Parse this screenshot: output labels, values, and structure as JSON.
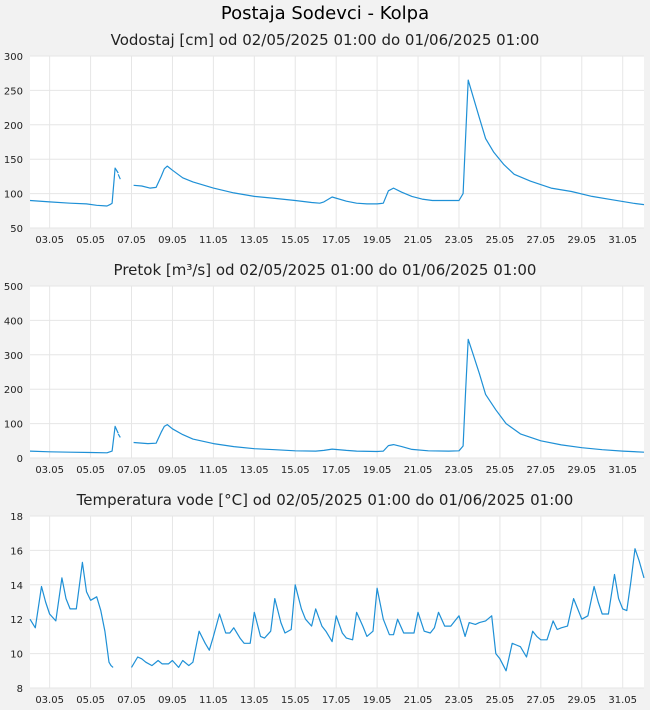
{
  "page_title": "Postaja Sodevci - Kolpa",
  "colors": {
    "line": "#1e90d6",
    "grid": "#e6e6e6",
    "plot_bg": "#ffffff",
    "page_bg": "#f2f2f2"
  },
  "chart_data": [
    {
      "type": "line",
      "title": "Vodostaj [cm] od 02/05/2025 01:00 do 01/06/2025 01:00",
      "xlabel": "",
      "ylabel": "",
      "x_unit": "day of May 2025",
      "xlim": [
        2.04,
        32.04
      ],
      "ylim": [
        50,
        300
      ],
      "yticks": [
        50,
        100,
        150,
        200,
        250,
        300
      ],
      "xtick_positions": [
        3,
        5,
        7,
        9,
        11,
        13,
        15,
        17,
        19,
        21,
        23,
        25,
        27,
        29,
        31
      ],
      "xtick_labels": [
        "03.05",
        "05.05",
        "07.05",
        "09.05",
        "11.05",
        "13.05",
        "15.05",
        "17.05",
        "19.05",
        "21.05",
        "23.05",
        "25.05",
        "27.05",
        "29.05",
        "31.05"
      ],
      "series": [
        {
          "name": "Vodostaj",
          "segments": [
            {
              "x": [
                2.04,
                3,
                4,
                4.8,
                5.3,
                5.8,
                5.95,
                6.05,
                6.2,
                6.35
              ],
              "y": [
                90,
                88,
                86,
                85,
                83,
                82,
                84,
                86,
                137,
                130
              ]
            },
            {
              "x": [
                6.35,
                6.45
              ],
              "y": [
                128,
                121
              ]
            },
            {
              "x": [
                7.1,
                7.5,
                7.9,
                8.2,
                8.45,
                8.6,
                8.75,
                9,
                9.5,
                10,
                11,
                12,
                13,
                14,
                15,
                15.8,
                16.2,
                16.4,
                16.8,
                17.5,
                18,
                18.5,
                19,
                19.3,
                19.55,
                19.8,
                20.2,
                20.7,
                21.2,
                21.7,
                22.2,
                22.6,
                23,
                23.2,
                23.33,
                23.45,
                23.7,
                24,
                24.3,
                24.7,
                25.2,
                25.7,
                26.5,
                27.5,
                28.5,
                29.5,
                30.5,
                31.5,
                32.04
              ],
              "y": [
                112,
                111,
                108,
                109,
                125,
                136,
                140,
                134,
                123,
                117,
                108,
                101,
                96,
                93,
                90,
                87,
                86,
                88,
                95,
                89,
                86,
                85,
                85,
                86,
                104,
                108,
                102,
                96,
                92,
                90,
                90,
                90,
                90,
                100,
                185,
                265,
                240,
                210,
                180,
                160,
                142,
                128,
                118,
                108,
                103,
                96,
                91,
                86,
                84
              ]
            }
          ]
        }
      ]
    },
    {
      "type": "line",
      "title": "Pretok [m³/s] od 02/05/2025 01:00 do 01/06/2025 01:00",
      "xlabel": "",
      "ylabel": "",
      "x_unit": "day of May 2025",
      "xlim": [
        2.04,
        32.04
      ],
      "ylim": [
        0,
        500
      ],
      "yticks": [
        0,
        100,
        200,
        300,
        400,
        500
      ],
      "xtick_positions": [
        3,
        5,
        7,
        9,
        11,
        13,
        15,
        17,
        19,
        21,
        23,
        25,
        27,
        29,
        31
      ],
      "xtick_labels": [
        "03.05",
        "05.05",
        "07.05",
        "09.05",
        "11.05",
        "13.05",
        "15.05",
        "17.05",
        "19.05",
        "21.05",
        "23.05",
        "25.05",
        "27.05",
        "29.05",
        "31.05"
      ],
      "series": [
        {
          "name": "Pretok",
          "segments": [
            {
              "x": [
                2.04,
                3,
                4,
                5,
                5.8,
                6.05,
                6.2,
                6.35
              ],
              "y": [
                20,
                18,
                17,
                16,
                15,
                20,
                92,
                72
              ]
            },
            {
              "x": [
                6.35,
                6.45
              ],
              "y": [
                70,
                60
              ]
            },
            {
              "x": [
                7.1,
                7.8,
                8.2,
                8.45,
                8.6,
                8.75,
                9,
                9.5,
                10,
                11,
                12,
                13,
                14,
                15,
                16,
                16.4,
                16.8,
                17.5,
                18,
                19,
                19.3,
                19.55,
                19.8,
                20.2,
                20.7,
                21.5,
                22.5,
                23,
                23.2,
                23.33,
                23.45,
                23.7,
                24,
                24.3,
                24.8,
                25.3,
                26,
                27,
                28,
                29,
                30,
                31,
                32.04
              ],
              "y": [
                45,
                42,
                43,
                75,
                92,
                97,
                85,
                68,
                55,
                42,
                33,
                27,
                24,
                21,
                20,
                22,
                26,
                22,
                20,
                19,
                20,
                36,
                39,
                33,
                25,
                21,
                20,
                21,
                35,
                200,
                345,
                300,
                245,
                185,
                140,
                100,
                70,
                50,
                38,
                30,
                24,
                20,
                17
              ]
            }
          ]
        }
      ]
    },
    {
      "type": "line",
      "title": "Temperatura vode [°C] od 02/05/2025 01:00 do 01/06/2025 01:00",
      "xlabel": "",
      "ylabel": "",
      "x_unit": "day of May 2025",
      "xlim": [
        2.04,
        32.04
      ],
      "ylim": [
        8,
        18
      ],
      "yticks": [
        8,
        10,
        12,
        14,
        16,
        18
      ],
      "xtick_positions": [
        3,
        5,
        7,
        9,
        11,
        13,
        15,
        17,
        19,
        21,
        23,
        25,
        27,
        29,
        31
      ],
      "xtick_labels": [
        "03.05",
        "05.05",
        "07.05",
        "09.05",
        "11.05",
        "13.05",
        "15.05",
        "17.05",
        "19.05",
        "21.05",
        "23.05",
        "25.05",
        "27.05",
        "29.05",
        "31.05"
      ],
      "series": [
        {
          "name": "Temperatura vode",
          "segments": [
            {
              "x": [
                2.04,
                2.3,
                2.6,
                2.8,
                3.0,
                3.3,
                3.6,
                3.8,
                4.0,
                4.3,
                4.6,
                4.8,
                5.0,
                5.3,
                5.5,
                5.7,
                5.9,
                6.0,
                6.1
              ],
              "y": [
                12.0,
                11.5,
                13.9,
                13.0,
                12.3,
                11.9,
                14.4,
                13.2,
                12.6,
                12.6,
                15.3,
                13.6,
                13.1,
                13.3,
                12.5,
                11.3,
                9.5,
                9.3,
                9.2
              ]
            },
            {
              "x": [
                7.0,
                7.3,
                7.5,
                7.7,
                8.0,
                8.3,
                8.5,
                8.8,
                9.0,
                9.3,
                9.5,
                9.8,
                10.0,
                10.3,
                10.6,
                10.8,
                11.0,
                11.3,
                11.6,
                11.8,
                12.0,
                12.3,
                12.5,
                12.8,
                13.0,
                13.3,
                13.5,
                13.8,
                14.0,
                14.3,
                14.5,
                14.8,
                15.0,
                15.3,
                15.5,
                15.8,
                16.0,
                16.3,
                16.5,
                16.8,
                17.0,
                17.3,
                17.5,
                17.8,
                18.0,
                18.3,
                18.5,
                18.8,
                19.0,
                19.3,
                19.6,
                19.8,
                20.0,
                20.3,
                20.6,
                20.8,
                21.0,
                21.3,
                21.6,
                21.8,
                22.0,
                22.3,
                22.6,
                22.8,
                23.0,
                23.3,
                23.5,
                23.8,
                24.0,
                24.3,
                24.6,
                24.8,
                25.0,
                25.3,
                25.6,
                25.8,
                26.0,
                26.3,
                26.6,
                26.8,
                27.0,
                27.3,
                27.6,
                27.8,
                28.0,
                28.3,
                28.6,
                28.8,
                29.0,
                29.3,
                29.6,
                29.8,
                30.0,
                30.3,
                30.6,
                30.8,
                31.0,
                31.2,
                31.4,
                31.6,
                31.8,
                32.04
              ],
              "y": [
                9.2,
                9.8,
                9.7,
                9.5,
                9.3,
                9.6,
                9.4,
                9.4,
                9.6,
                9.2,
                9.6,
                9.3,
                9.5,
                11.3,
                10.6,
                10.2,
                11.0,
                12.3,
                11.2,
                11.2,
                11.5,
                10.9,
                10.6,
                10.6,
                12.4,
                11.0,
                10.9,
                11.3,
                13.2,
                11.8,
                11.2,
                11.4,
                14.0,
                12.6,
                12.0,
                11.6,
                12.6,
                11.6,
                11.3,
                10.7,
                12.2,
                11.2,
                10.9,
                10.8,
                12.4,
                11.6,
                11.0,
                11.3,
                13.8,
                12.0,
                11.1,
                11.1,
                12.0,
                11.2,
                11.2,
                11.2,
                12.4,
                11.3,
                11.2,
                11.5,
                12.4,
                11.6,
                11.6,
                11.9,
                12.2,
                11.0,
                11.8,
                11.7,
                11.8,
                11.9,
                12.2,
                10.0,
                9.7,
                9.0,
                10.6,
                10.5,
                10.4,
                9.8,
                11.3,
                11.0,
                10.8,
                10.8,
                11.9,
                11.4,
                11.5,
                11.6,
                13.2,
                12.6,
                12.0,
                12.2,
                13.9,
                13.0,
                12.3,
                12.3,
                14.6,
                13.2,
                12.6,
                12.5,
                14.2,
                16.1,
                15.4,
                14.4
              ]
            }
          ]
        }
      ]
    }
  ]
}
